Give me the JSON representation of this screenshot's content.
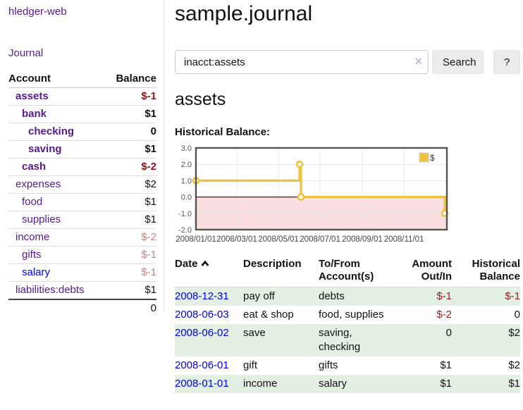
{
  "app": {
    "brand": "hledger-web",
    "nav_journal": "Journal"
  },
  "colors": {
    "link_purple": "#551a8b",
    "link_blue": "#0000ee",
    "negative_strong": "#8b1414",
    "negative_faded": "#c08585",
    "register_negative": "#8f1f1f",
    "row_stripe_green": "#e2efe2",
    "series_gold": "#edc240",
    "negative_region_pink": "#f9dfdf",
    "zero_line_red": "#8b0000"
  },
  "icons": {
    "search_clear": "×",
    "sort_ascending": "chevron-up",
    "legend_swatch": "gold-square"
  },
  "sidebar": {
    "headers": {
      "account": "Account",
      "balance": "Balance"
    },
    "accounts": [
      {
        "name": "assets",
        "level": 1,
        "bold": true,
        "balance": "$-1",
        "bclass": "neg"
      },
      {
        "name": "bank",
        "level": 2,
        "bold": true,
        "balance": "$1",
        "bclass": ""
      },
      {
        "name": "checking",
        "level": 3,
        "bold": true,
        "balance": "0",
        "bclass": ""
      },
      {
        "name": "saving",
        "level": 3,
        "bold": true,
        "balance": "$1",
        "bclass": ""
      },
      {
        "name": "cash",
        "level": 2,
        "bold": true,
        "balance": "$-2",
        "bclass": "neg"
      },
      {
        "name": "expenses",
        "level": 1,
        "bold": false,
        "balance": "$2",
        "bclass": ""
      },
      {
        "name": "food",
        "level": 2,
        "bold": false,
        "balance": "$1",
        "bclass": ""
      },
      {
        "name": "supplies",
        "level": 2,
        "bold": false,
        "balance": "$1",
        "bclass": ""
      },
      {
        "name": "income",
        "level": 1,
        "bold": false,
        "balance": "$-2",
        "bclass": "neg-faded"
      },
      {
        "name": "gifts",
        "level": 2,
        "bold": false,
        "balance": "$-1",
        "bclass": "neg-faded"
      },
      {
        "name": "salary",
        "level": 2,
        "bold": false,
        "balance": "$-1",
        "bclass": "neg-faded",
        "link": "blue"
      },
      {
        "name": "liabilities:debts",
        "level": 1,
        "bold": false,
        "balance": "$1",
        "bclass": ""
      }
    ],
    "total": "0"
  },
  "main": {
    "title": "sample.journal",
    "search": {
      "value": "inacct:assets",
      "clear_icon": "×",
      "button_label": "Search",
      "help_label": "?"
    },
    "account_heading": "assets",
    "chart_label": "Historical Balance:",
    "register": {
      "headers": {
        "date": "Date",
        "description": "Description",
        "accounts": "To/From Account(s)",
        "amount": "Amount Out/In",
        "balance": "Historical Balance"
      },
      "rows": [
        {
          "date": "2008-12-31",
          "description": "pay off",
          "accounts": "debts",
          "amount": "$-1",
          "amount_neg": true,
          "balance": "$-1",
          "balance_neg": true
        },
        {
          "date": "2008-06-03",
          "description": "eat & shop",
          "accounts": "food, supplies",
          "amount": "$-2",
          "amount_neg": true,
          "balance": "0",
          "balance_neg": false
        },
        {
          "date": "2008-06-02",
          "description": "save",
          "accounts": "saving, checking",
          "amount": "0",
          "amount_neg": false,
          "balance": "$2",
          "balance_neg": false
        },
        {
          "date": "2008-06-01",
          "description": "gift",
          "accounts": "gifts",
          "amount": "$1",
          "amount_neg": false,
          "balance": "$2",
          "balance_neg": false
        },
        {
          "date": "2008-01-01",
          "description": "income",
          "accounts": "salary",
          "amount": "$1",
          "amount_neg": false,
          "balance": "$1",
          "balance_neg": false
        }
      ]
    }
  },
  "chart_data": {
    "type": "line",
    "step": true,
    "title": "Historical Balance",
    "xlabel": "",
    "ylabel": "",
    "legend_position": "top-right",
    "grid": true,
    "ylim": [
      -2,
      3
    ],
    "xlim": [
      "2008-01-01",
      "2009-01-03"
    ],
    "yticks": [
      {
        "value": 3,
        "label": "3.0"
      },
      {
        "value": 2,
        "label": "2.0"
      },
      {
        "value": 1,
        "label": "1.0"
      },
      {
        "value": 0,
        "label": "0.0"
      },
      {
        "value": -1,
        "label": "-1.0"
      },
      {
        "value": -2,
        "label": "-2.0"
      }
    ],
    "xticks": [
      {
        "date": "2008-01-01",
        "label": "2008/01/01"
      },
      {
        "date": "2008-03-01",
        "label": "2008/03/01"
      },
      {
        "date": "2008-05-01",
        "label": "2008/05/01"
      },
      {
        "date": "2008-07-01",
        "label": "2008/07/01"
      },
      {
        "date": "2008-09-01",
        "label": "2008/09/01"
      },
      {
        "date": "2008-11-01",
        "label": "2008/11/01"
      }
    ],
    "series": [
      {
        "name": "$",
        "color": "#edc240",
        "points": [
          [
            "2008-01-01",
            1
          ],
          [
            "2008-06-01",
            2
          ],
          [
            "2008-06-03",
            0
          ],
          [
            "2008-12-31",
            -1
          ]
        ]
      }
    ],
    "negative_fill": "#f9dfdf",
    "zero_line_color": "#8b0000"
  }
}
